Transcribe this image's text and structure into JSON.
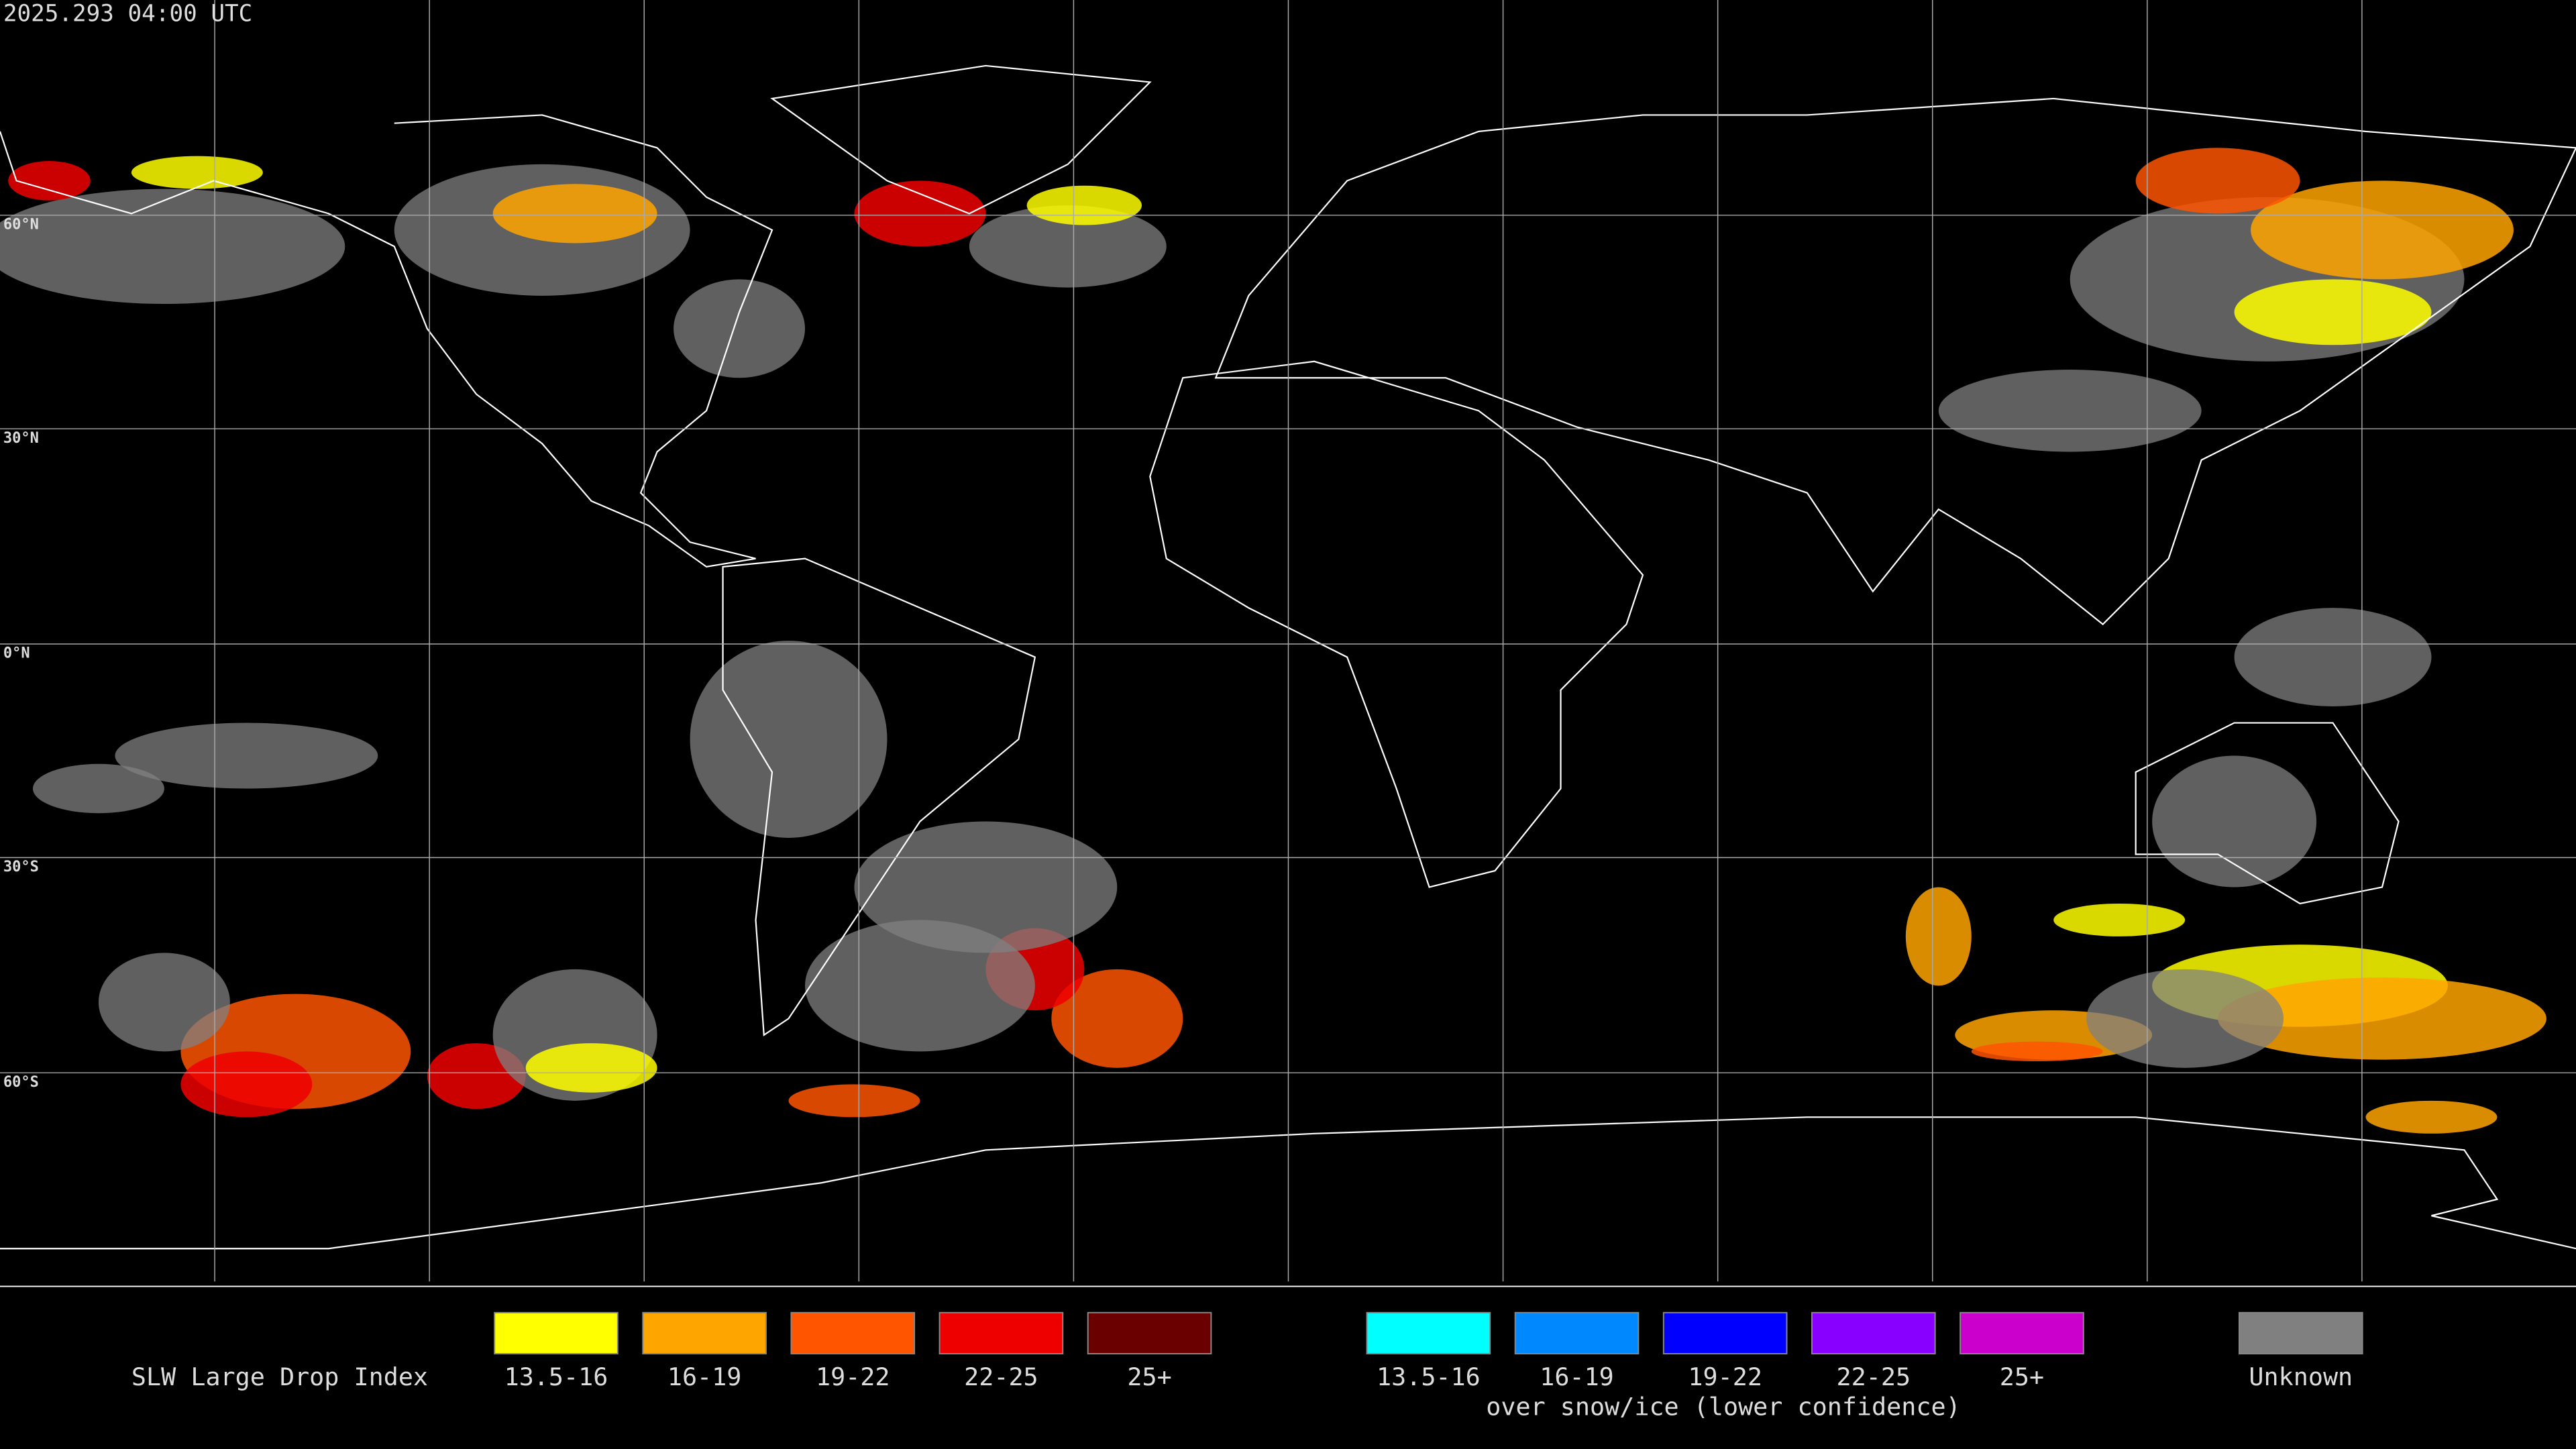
{
  "header": {
    "timestamp": "2025.293 04:00 UTC"
  },
  "map": {
    "lat_labels": [
      "60°N",
      "30°N",
      "0°N",
      "30°S",
      "60°S"
    ]
  },
  "legend": {
    "title": "SLW Large Drop Index",
    "items": [
      {
        "label": "13.5-16",
        "color": "#ffff00"
      },
      {
        "label": "16-19",
        "color": "#ffa500"
      },
      {
        "label": "19-22",
        "color": "#ff5500"
      },
      {
        "label": "22-25",
        "color": "#ee0000"
      },
      {
        "label": "25+",
        "color": "#6b0000"
      }
    ],
    "snow_items": [
      {
        "label": "13.5-16",
        "color": "#00ffff"
      },
      {
        "label": "16-19",
        "color": "#0088ff"
      },
      {
        "label": "19-22",
        "color": "#0000ff"
      },
      {
        "label": "22-25",
        "color": "#8800ff"
      },
      {
        "label": "25+",
        "color": "#cc00cc"
      }
    ],
    "snow_note": "over snow/ice (lower confidence)",
    "unknown": {
      "label": "Unknown",
      "color": "#808080"
    }
  }
}
